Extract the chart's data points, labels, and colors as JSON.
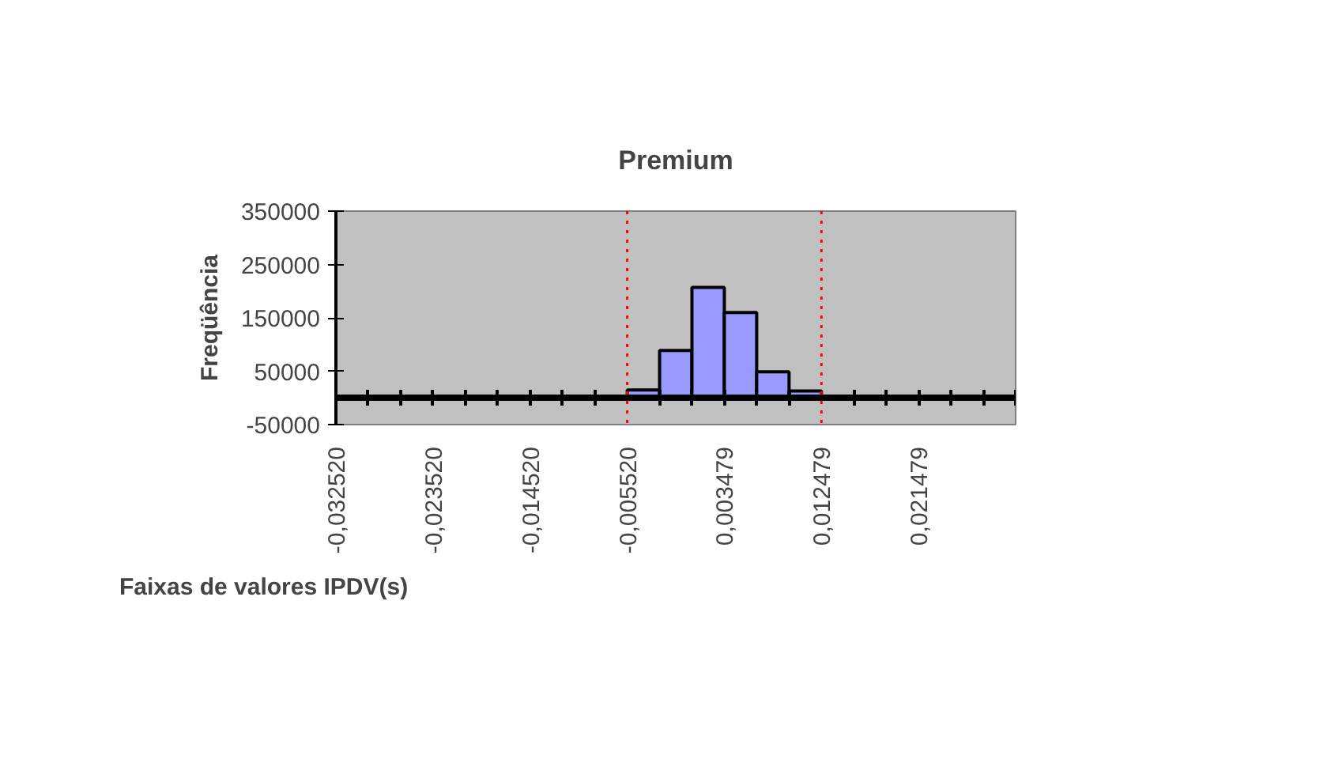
{
  "chart_data": {
    "type": "histogram",
    "title": "Premium",
    "xlabel": "Faixas de valores IPDV(s)",
    "ylabel": "Freqüência",
    "bins": [
      -0.03252,
      -0.02952,
      -0.02652,
      -0.02352,
      -0.02052,
      -0.01752,
      -0.01452,
      -0.01152,
      -0.00852,
      -0.00552,
      -0.002521,
      0.000479,
      0.003479,
      0.006479,
      0.009479,
      0.012479,
      0.015479,
      0.018479,
      0.021479,
      0.024479,
      0.027479,
      0.030479
    ],
    "values": [
      0,
      0,
      0,
      0,
      0,
      0,
      0,
      0,
      0,
      15000,
      89000,
      207000,
      160000,
      49000,
      13000,
      0,
      0,
      0,
      0,
      0,
      0
    ],
    "color": "#9999ff",
    "xlim": [
      -0.03252,
      0.030479
    ],
    "xticks": [
      {
        "value": -0.03252,
        "label": "-0,032520"
      },
      {
        "value": -0.02952,
        "label": null
      },
      {
        "value": -0.02652,
        "label": null
      },
      {
        "value": -0.02352,
        "label": "-0,023520"
      },
      {
        "value": -0.02052,
        "label": null
      },
      {
        "value": -0.01752,
        "label": null
      },
      {
        "value": -0.01452,
        "label": "-0,014520"
      },
      {
        "value": -0.01152,
        "label": null
      },
      {
        "value": -0.00852,
        "label": null
      },
      {
        "value": -0.00552,
        "label": "-0,005520"
      },
      {
        "value": -0.002521,
        "label": null
      },
      {
        "value": 0.000479,
        "label": null
      },
      {
        "value": 0.003479,
        "label": "0,003479"
      },
      {
        "value": 0.006479,
        "label": null
      },
      {
        "value": 0.009479,
        "label": null
      },
      {
        "value": 0.012479,
        "label": "0,012479"
      },
      {
        "value": 0.015479,
        "label": null
      },
      {
        "value": 0.018479,
        "label": null
      },
      {
        "value": 0.021479,
        "label": "0,021479"
      },
      {
        "value": 0.024479,
        "label": null
      },
      {
        "value": 0.027479,
        "label": null
      },
      {
        "value": 0.030479,
        "label": null
      }
    ],
    "ylim": [
      -50000,
      350000
    ],
    "yticks": [
      -50000,
      50000,
      150000,
      250000,
      350000
    ],
    "grid": false,
    "ref_lines": [
      {
        "axis": "x",
        "value": -0.00552,
        "color": "#ff0000",
        "line_style": "dotted"
      },
      {
        "axis": "x",
        "value": 0.012479,
        "color": "#ff0000",
        "line_style": "dotted"
      }
    ]
  }
}
